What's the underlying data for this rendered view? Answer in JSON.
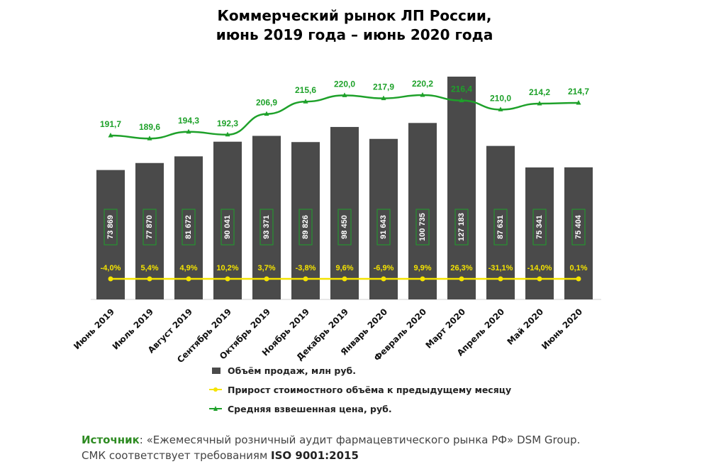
{
  "title_line1": "Коммерческий рынок ЛП России,",
  "title_line2": "июнь 2019 года – июнь 2020 года",
  "chart_data": {
    "type": "bar",
    "title": "Коммерческий рынок ЛП России, июнь 2019 года – июнь 2020 года",
    "categories": [
      "Июнь 2019",
      "Июль 2019",
      "Август 2019",
      "Сентябрь 2019",
      "Октябрь 2019",
      "Ноябрь 2019",
      "Декабрь 2019",
      "Январь 2020",
      "Февраль 2020",
      "Март 2020",
      "Апрель 2020",
      "Май 2020",
      "Июнь 2020"
    ],
    "series": [
      {
        "name": "Объём продаж, млн руб.",
        "type": "bar",
        "color": "#4a4a4a",
        "values": [
          73869,
          77870,
          81672,
          90041,
          93371,
          89826,
          98450,
          91643,
          100735,
          127183,
          87631,
          75341,
          75404
        ],
        "labels": [
          "73 869",
          "77 870",
          "81 672",
          "90 041",
          "93 371",
          "89 826",
          "98 450",
          "91 643",
          "100 735",
          "127 183",
          "87 631",
          "75 341",
          "75 404"
        ]
      },
      {
        "name": "Прирост стоимостного объёма к предыдущему месяцу",
        "type": "line",
        "color": "#f5e400",
        "values": [
          -4.0,
          5.4,
          4.9,
          10.2,
          3.7,
          -3.8,
          9.6,
          -6.9,
          9.9,
          26.3,
          -31.1,
          -14.0,
          0.1
        ],
        "labels": [
          "-4,0%",
          "5,4%",
          "4,9%",
          "10,2%",
          "3,7%",
          "-3,8%",
          "9,6%",
          "-6,9%",
          "9,9%",
          "26,3%",
          "-31,1%",
          "-14,0%",
          "0,1%"
        ]
      },
      {
        "name": "Средняя взвешенная цена, руб.",
        "type": "line",
        "color": "#1ea12a",
        "values": [
          191.7,
          189.6,
          194.3,
          192.3,
          206.9,
          215.6,
          220.0,
          217.9,
          220.2,
          216.4,
          210.0,
          214.2,
          214.7
        ],
        "labels": [
          "191,7",
          "189,6",
          "194,3",
          "192,3",
          "206,9",
          "215,6",
          "220,0",
          "217,9",
          "220,2",
          "216,4",
          "210,0",
          "214,2",
          "214,7"
        ]
      }
    ],
    "legend_position": "bottom",
    "grid": false
  },
  "source": {
    "label": "Источник",
    "text": ": «Ежемесячный розничный аудит фармацевтического рынка РФ» DSM Group.",
    "line2": "СМК соответствует требованиям ",
    "iso": "ISO 9001:2015"
  }
}
